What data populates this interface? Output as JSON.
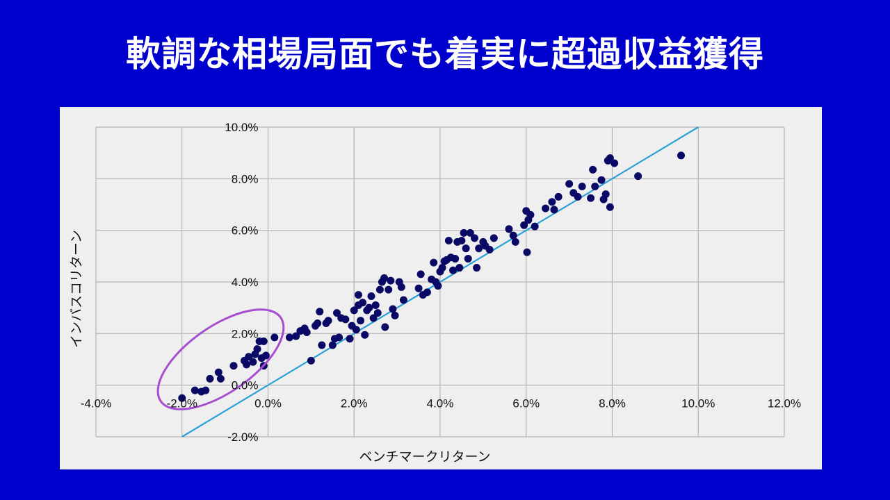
{
  "slide": {
    "title": "軟調な相場局面でも着実に超過収益獲得"
  },
  "colors": {
    "background": "#0000cc",
    "panel": "#efefef",
    "points": "#0a0a66",
    "reference_line": "#2aa0d8",
    "highlight_ellipse": "#a64dd0",
    "grid": "#b3b3b3"
  },
  "chart_data": {
    "type": "scatter",
    "xlabel": "ベンチマークリターン",
    "ylabel": "インバスコリターン",
    "xlim": [
      -4.0,
      12.0
    ],
    "ylim": [
      -2.0,
      10.0
    ],
    "x_ticks": [
      -4.0,
      -2.0,
      0.0,
      2.0,
      4.0,
      6.0,
      8.0,
      10.0,
      12.0
    ],
    "y_ticks": [
      -2.0,
      0.0,
      2.0,
      4.0,
      6.0,
      8.0,
      10.0
    ],
    "x_tick_labels": [
      "-4.0%",
      "-2.0%",
      "0.0%",
      "2.0%",
      "4.0%",
      "6.0%",
      "8.0%",
      "10.0%",
      "12.0%"
    ],
    "y_tick_labels": [
      "-2.0%",
      "0.0%",
      "2.0%",
      "4.0%",
      "6.0%",
      "8.0%",
      "10.0%"
    ],
    "grid": true,
    "legend": "none",
    "reference_line": {
      "name": "y = x",
      "from": [
        -2.0,
        -2.0
      ],
      "to": [
        10.0,
        10.0
      ]
    },
    "highlight": {
      "shape": "ellipse",
      "center": [
        -1.1,
        1.0
      ],
      "rx": 1.7,
      "ry": 1.5,
      "angle_deg": -35
    },
    "points": [
      [
        -2.0,
        -0.5
      ],
      [
        -1.7,
        -0.2
      ],
      [
        -1.55,
        -0.25
      ],
      [
        -1.45,
        -0.2
      ],
      [
        -1.35,
        0.25
      ],
      [
        -1.15,
        0.5
      ],
      [
        -1.1,
        0.25
      ],
      [
        -0.8,
        0.75
      ],
      [
        -0.55,
        0.95
      ],
      [
        -0.5,
        0.8
      ],
      [
        -0.45,
        1.1
      ],
      [
        -0.35,
        0.9
      ],
      [
        -0.3,
        1.2
      ],
      [
        -0.25,
        1.4
      ],
      [
        -0.2,
        1.7
      ],
      [
        -0.15,
        1.05
      ],
      [
        -0.1,
        0.75
      ],
      [
        -0.05,
        1.15
      ],
      [
        -0.1,
        1.7
      ],
      [
        0.15,
        1.85
      ],
      [
        0.5,
        1.85
      ],
      [
        0.65,
        1.9
      ],
      [
        0.75,
        2.1
      ],
      [
        0.85,
        2.2
      ],
      [
        0.9,
        2.05
      ],
      [
        1.0,
        0.95
      ],
      [
        1.1,
        2.3
      ],
      [
        1.15,
        2.4
      ],
      [
        1.2,
        2.85
      ],
      [
        1.25,
        1.55
      ],
      [
        1.35,
        2.4
      ],
      [
        1.4,
        2.5
      ],
      [
        1.5,
        1.55
      ],
      [
        1.55,
        1.8
      ],
      [
        1.6,
        2.8
      ],
      [
        1.65,
        1.85
      ],
      [
        1.7,
        2.6
      ],
      [
        1.8,
        2.55
      ],
      [
        1.9,
        1.8
      ],
      [
        1.95,
        2.3
      ],
      [
        2.0,
        2.9
      ],
      [
        2.05,
        2.15
      ],
      [
        2.1,
        3.1
      ],
      [
        2.1,
        3.5
      ],
      [
        2.15,
        2.5
      ],
      [
        2.2,
        3.2
      ],
      [
        2.25,
        1.95
      ],
      [
        2.3,
        2.9
      ],
      [
        2.35,
        3.0
      ],
      [
        2.4,
        3.45
      ],
      [
        2.45,
        2.6
      ],
      [
        2.5,
        3.1
      ],
      [
        2.55,
        2.8
      ],
      [
        2.6,
        3.7
      ],
      [
        2.65,
        4.0
      ],
      [
        2.7,
        4.15
      ],
      [
        2.72,
        2.25
      ],
      [
        2.8,
        3.7
      ],
      [
        2.85,
        4.05
      ],
      [
        2.9,
        2.95
      ],
      [
        2.95,
        2.7
      ],
      [
        3.05,
        4.0
      ],
      [
        3.1,
        3.8
      ],
      [
        3.15,
        3.3
      ],
      [
        3.5,
        3.75
      ],
      [
        3.55,
        4.3
      ],
      [
        3.6,
        3.5
      ],
      [
        3.7,
        3.6
      ],
      [
        3.8,
        4.1
      ],
      [
        3.85,
        4.75
      ],
      [
        3.9,
        4.0
      ],
      [
        3.95,
        3.85
      ],
      [
        4.0,
        4.4
      ],
      [
        4.05,
        4.55
      ],
      [
        4.1,
        4.8
      ],
      [
        4.15,
        4.85
      ],
      [
        4.2,
        5.6
      ],
      [
        4.25,
        4.95
      ],
      [
        4.3,
        4.45
      ],
      [
        4.35,
        4.9
      ],
      [
        4.4,
        5.55
      ],
      [
        4.45,
        4.55
      ],
      [
        4.5,
        5.6
      ],
      [
        4.55,
        5.9
      ],
      [
        4.6,
        5.3
      ],
      [
        4.65,
        4.9
      ],
      [
        4.7,
        5.9
      ],
      [
        4.8,
        5.7
      ],
      [
        4.85,
        4.55
      ],
      [
        4.9,
        5.3
      ],
      [
        5.0,
        5.55
      ],
      [
        5.05,
        5.4
      ],
      [
        5.15,
        5.25
      ],
      [
        5.25,
        5.7
      ],
      [
        5.6,
        6.05
      ],
      [
        5.7,
        5.8
      ],
      [
        5.75,
        5.55
      ],
      [
        5.95,
        6.2
      ],
      [
        6.0,
        6.75
      ],
      [
        6.02,
        5.15
      ],
      [
        6.05,
        6.4
      ],
      [
        6.1,
        6.6
      ],
      [
        6.2,
        6.15
      ],
      [
        6.45,
        6.85
      ],
      [
        6.6,
        7.1
      ],
      [
        6.65,
        6.8
      ],
      [
        6.75,
        7.3
      ],
      [
        7.0,
        7.8
      ],
      [
        7.1,
        7.45
      ],
      [
        7.2,
        7.3
      ],
      [
        7.3,
        7.7
      ],
      [
        7.5,
        7.25
      ],
      [
        7.55,
        8.35
      ],
      [
        7.6,
        7.7
      ],
      [
        7.75,
        7.95
      ],
      [
        7.8,
        7.2
      ],
      [
        7.85,
        7.4
      ],
      [
        7.9,
        8.7
      ],
      [
        7.95,
        8.8
      ],
      [
        7.95,
        6.9
      ],
      [
        8.05,
        8.6
      ],
      [
        8.6,
        8.1
      ],
      [
        9.6,
        8.9
      ]
    ]
  }
}
